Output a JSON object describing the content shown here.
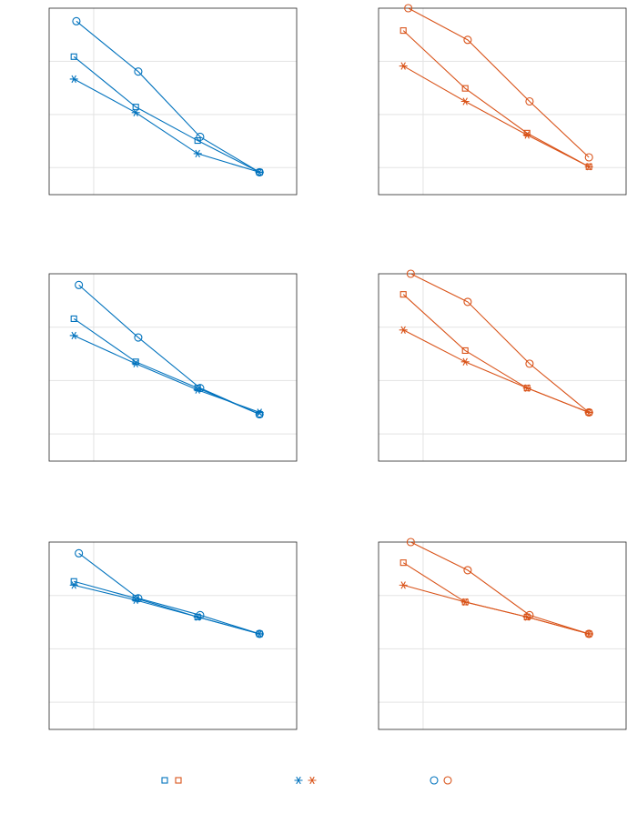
{
  "colors": {
    "blue": "#0072BD",
    "orange": "#D95319",
    "grid": "#e3e3e3",
    "axis": "#262626"
  },
  "chart_data": [
    {
      "type": "line",
      "title": "",
      "xlabel": "",
      "ylabel": "",
      "xlim": [
        0,
        10
      ],
      "ylim": [
        0,
        10
      ],
      "grid": true,
      "color": "blue",
      "series": [
        {
          "marker": "square",
          "x": [
            1.0,
            3.5,
            6.0,
            8.5
          ],
          "y": [
            7.4,
            4.7,
            2.9,
            1.2
          ]
        },
        {
          "marker": "asterisk",
          "x": [
            1.0,
            3.5,
            6.0,
            8.5
          ],
          "y": [
            6.2,
            4.4,
            2.2,
            1.2
          ]
        },
        {
          "marker": "circle",
          "x": [
            1.1,
            3.6,
            6.1,
            8.5
          ],
          "y": [
            9.3,
            6.6,
            3.1,
            1.2
          ]
        }
      ]
    },
    {
      "type": "line",
      "title": "",
      "xlabel": "",
      "ylabel": "",
      "xlim": [
        0,
        10
      ],
      "ylim": [
        0,
        10
      ],
      "grid": true,
      "color": "orange",
      "series": [
        {
          "marker": "square",
          "x": [
            1.0,
            3.5,
            6.0,
            8.5
          ],
          "y": [
            8.8,
            5.7,
            3.3,
            1.5
          ]
        },
        {
          "marker": "asterisk",
          "x": [
            1.0,
            3.5,
            6.0,
            8.5
          ],
          "y": [
            6.9,
            5.0,
            3.2,
            1.5
          ]
        },
        {
          "marker": "circle",
          "x": [
            1.2,
            3.6,
            6.1,
            8.5
          ],
          "y": [
            10.0,
            8.3,
            5.0,
            2.0
          ]
        }
      ]
    },
    {
      "type": "line",
      "title": "",
      "xlabel": "",
      "ylabel": "",
      "xlim": [
        0,
        10
      ],
      "ylim": [
        0,
        10
      ],
      "grid": true,
      "color": "blue",
      "series": [
        {
          "marker": "square",
          "x": [
            1.0,
            3.5,
            6.0,
            8.5
          ],
          "y": [
            7.6,
            5.3,
            3.9,
            2.5
          ]
        },
        {
          "marker": "asterisk",
          "x": [
            1.0,
            3.5,
            6.0,
            8.5
          ],
          "y": [
            6.7,
            5.2,
            3.8,
            2.6
          ]
        },
        {
          "marker": "circle",
          "x": [
            1.2,
            3.6,
            6.1,
            8.5
          ],
          "y": [
            9.4,
            6.6,
            3.9,
            2.5
          ]
        }
      ]
    },
    {
      "type": "line",
      "title": "",
      "xlabel": "",
      "ylabel": "",
      "xlim": [
        0,
        10
      ],
      "ylim": [
        0,
        10
      ],
      "grid": true,
      "color": "orange",
      "series": [
        {
          "marker": "square",
          "x": [
            1.0,
            3.5,
            6.0,
            8.5
          ],
          "y": [
            8.9,
            5.9,
            3.9,
            2.6
          ]
        },
        {
          "marker": "asterisk",
          "x": [
            1.0,
            3.5,
            6.0,
            8.5
          ],
          "y": [
            7.0,
            5.3,
            3.9,
            2.6
          ]
        },
        {
          "marker": "circle",
          "x": [
            1.3,
            3.6,
            6.1,
            8.5
          ],
          "y": [
            10.0,
            8.5,
            5.2,
            2.6
          ]
        }
      ]
    },
    {
      "type": "line",
      "title": "",
      "xlabel": "",
      "ylabel": "",
      "xlim": [
        0,
        10
      ],
      "ylim": [
        0,
        10
      ],
      "grid": true,
      "color": "blue",
      "series": [
        {
          "marker": "square",
          "x": [
            1.0,
            3.5,
            6.0,
            8.5
          ],
          "y": [
            7.9,
            7.0,
            6.0,
            5.1
          ]
        },
        {
          "marker": "asterisk",
          "x": [
            1.0,
            3.5,
            6.0,
            8.5
          ],
          "y": [
            7.7,
            6.9,
            6.0,
            5.1
          ]
        },
        {
          "marker": "circle",
          "x": [
            1.2,
            3.6,
            6.1,
            8.5
          ],
          "y": [
            9.4,
            7.0,
            6.1,
            5.1
          ]
        }
      ]
    },
    {
      "type": "line",
      "title": "",
      "xlabel": "",
      "ylabel": "",
      "xlim": [
        0,
        10
      ],
      "ylim": [
        0,
        10
      ],
      "grid": true,
      "color": "orange",
      "series": [
        {
          "marker": "square",
          "x": [
            1.0,
            3.5,
            6.0,
            8.5
          ],
          "y": [
            8.9,
            6.8,
            6.0,
            5.1
          ]
        },
        {
          "marker": "asterisk",
          "x": [
            1.0,
            3.5,
            6.0,
            8.5
          ],
          "y": [
            7.7,
            6.8,
            6.0,
            5.1
          ]
        },
        {
          "marker": "circle",
          "x": [
            1.3,
            3.6,
            6.1,
            8.5
          ],
          "y": [
            10.0,
            8.5,
            6.1,
            5.1
          ]
        }
      ]
    }
  ],
  "legend": [
    {
      "marker": "square"
    },
    {
      "marker": "asterisk"
    },
    {
      "marker": "circle"
    }
  ]
}
